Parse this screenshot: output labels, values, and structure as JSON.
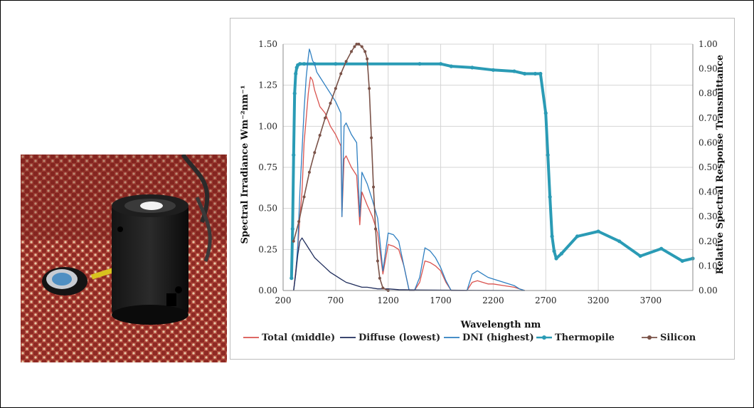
{
  "chart_data": {
    "type": "line",
    "xlabel": "Wavelength nm",
    "ylabel_left": "Spectral Irradiance Wm⁻²nm⁻¹",
    "ylabel_right": "Relative Spectral Response Transmittance",
    "xlim": [
      200,
      4100
    ],
    "ylim_left": [
      0,
      1.5
    ],
    "ylim_right": [
      0,
      1.0
    ],
    "x_ticks": [
      "200",
      "700",
      "1200",
      "1700",
      "2200",
      "2700",
      "3200",
      "3700"
    ],
    "y_ticks_left": [
      "0.00",
      "0.25",
      "0.50",
      "0.75",
      "1.00",
      "1.25",
      "1.50"
    ],
    "y_ticks_right": [
      "0.00",
      "0.10",
      "0.20",
      "0.30",
      "0.40",
      "0.50",
      "0.60",
      "0.70",
      "0.80",
      "0.90",
      "1.00"
    ],
    "grid": true,
    "legend_position": "bottom",
    "series": [
      {
        "name": "Total (middle)",
        "color": "#d9534f",
        "axis": "left",
        "style": "line",
        "x": [
          300,
          320,
          340,
          360,
          380,
          400,
          420,
          440,
          460,
          480,
          500,
          550,
          600,
          650,
          700,
          750,
          760,
          780,
          800,
          850,
          900,
          930,
          950,
          1000,
          1050,
          1100,
          1150,
          1200,
          1250,
          1300,
          1350,
          1400,
          1450,
          1500,
          1550,
          1600,
          1650,
          1700,
          1750,
          1800,
          1850,
          1900,
          1950,
          2000,
          2050,
          2100,
          2150,
          2200,
          2300,
          2400,
          2450,
          2500
        ],
        "y": [
          0.0,
          0.12,
          0.25,
          0.45,
          0.6,
          0.9,
          1.05,
          1.2,
          1.3,
          1.28,
          1.22,
          1.12,
          1.08,
          1.0,
          0.95,
          0.88,
          0.45,
          0.8,
          0.82,
          0.75,
          0.7,
          0.4,
          0.6,
          0.52,
          0.45,
          0.35,
          0.1,
          0.28,
          0.27,
          0.25,
          0.15,
          0.0,
          0.0,
          0.05,
          0.18,
          0.17,
          0.15,
          0.12,
          0.05,
          0.0,
          0.0,
          0.0,
          0.0,
          0.05,
          0.06,
          0.05,
          0.04,
          0.04,
          0.03,
          0.02,
          0.01,
          0.0
        ]
      },
      {
        "name": "Diffuse (lowest)",
        "color": "#1f2d5c",
        "axis": "left",
        "style": "line",
        "x": [
          300,
          320,
          340,
          360,
          380,
          400,
          420,
          440,
          460,
          480,
          500,
          550,
          600,
          650,
          700,
          750,
          800,
          850,
          900,
          950,
          1000,
          1100,
          1200,
          1300,
          1500,
          1800,
          2000,
          2500
        ],
        "y": [
          0.0,
          0.1,
          0.22,
          0.3,
          0.32,
          0.3,
          0.28,
          0.26,
          0.24,
          0.22,
          0.2,
          0.17,
          0.14,
          0.11,
          0.09,
          0.07,
          0.05,
          0.04,
          0.03,
          0.02,
          0.02,
          0.01,
          0.01,
          0.005,
          0.003,
          0.002,
          0.001,
          0.0
        ]
      },
      {
        "name": "DNI (highest)",
        "color": "#2e7fc1",
        "axis": "left",
        "style": "line",
        "x": [
          300,
          320,
          340,
          360,
          380,
          400,
          420,
          440,
          450,
          460,
          480,
          500,
          520,
          550,
          600,
          650,
          700,
          750,
          760,
          780,
          800,
          850,
          900,
          930,
          950,
          1000,
          1050,
          1100,
          1150,
          1200,
          1250,
          1300,
          1350,
          1400,
          1450,
          1500,
          1550,
          1600,
          1650,
          1700,
          1750,
          1800,
          1850,
          1900,
          1950,
          2000,
          2050,
          2100,
          2150,
          2200,
          2300,
          2400,
          2450,
          2500
        ],
        "y": [
          0.0,
          0.1,
          0.28,
          0.6,
          0.85,
          1.1,
          1.3,
          1.42,
          1.47,
          1.45,
          1.4,
          1.38,
          1.33,
          1.3,
          1.25,
          1.2,
          1.15,
          1.08,
          0.45,
          1.0,
          1.02,
          0.95,
          0.9,
          0.45,
          0.72,
          0.65,
          0.55,
          0.44,
          0.12,
          0.35,
          0.34,
          0.3,
          0.15,
          0.0,
          0.0,
          0.08,
          0.26,
          0.24,
          0.2,
          0.14,
          0.06,
          0.0,
          0.0,
          0.0,
          0.0,
          0.1,
          0.12,
          0.1,
          0.08,
          0.07,
          0.05,
          0.03,
          0.01,
          0.0
        ]
      },
      {
        "name": "Thermopile",
        "color": "#2a9bb5",
        "axis": "right",
        "style": "line-markers",
        "x": [
          280,
          290,
          300,
          310,
          320,
          330,
          340,
          360,
          400,
          500,
          700,
          1000,
          1500,
          1700,
          1800,
          2000,
          2200,
          2400,
          2500,
          2600,
          2650,
          2700,
          2720,
          2740,
          2760,
          2780,
          2800,
          2850,
          3000,
          3200,
          3400,
          3600,
          3800,
          4000,
          4100
        ],
        "y": [
          0.05,
          0.25,
          0.55,
          0.8,
          0.88,
          0.905,
          0.915,
          0.92,
          0.92,
          0.92,
          0.92,
          0.92,
          0.92,
          0.92,
          0.91,
          0.905,
          0.895,
          0.89,
          0.88,
          0.88,
          0.88,
          0.72,
          0.55,
          0.38,
          0.22,
          0.16,
          0.13,
          0.15,
          0.22,
          0.24,
          0.2,
          0.14,
          0.17,
          0.12,
          0.13
        ]
      },
      {
        "name": "Silicon",
        "color": "#7a5248",
        "axis": "right",
        "style": "line-markers",
        "x": [
          300,
          350,
          400,
          450,
          500,
          550,
          600,
          650,
          700,
          750,
          800,
          850,
          880,
          900,
          920,
          950,
          980,
          1000,
          1020,
          1040,
          1060,
          1080,
          1100,
          1120,
          1150,
          1200
        ],
        "y": [
          0.2,
          0.28,
          0.38,
          0.48,
          0.56,
          0.63,
          0.7,
          0.76,
          0.82,
          0.88,
          0.93,
          0.97,
          0.99,
          1.0,
          1.0,
          0.99,
          0.97,
          0.94,
          0.82,
          0.62,
          0.42,
          0.25,
          0.12,
          0.05,
          0.01,
          0.0
        ]
      }
    ]
  }
}
